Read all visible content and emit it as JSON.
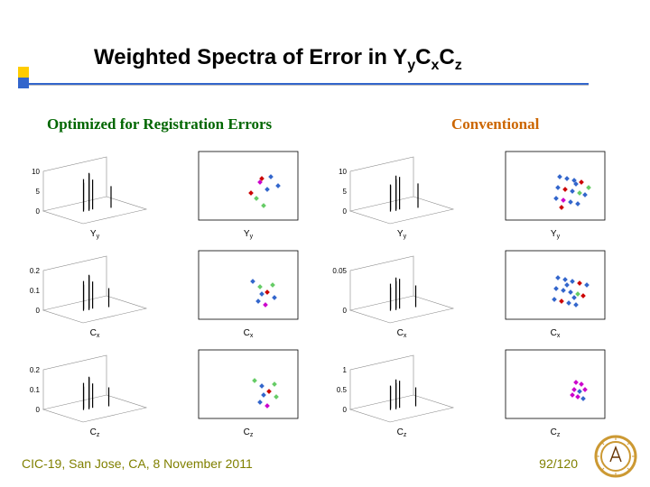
{
  "title_main": "Weighted Spectra of Error in Y",
  "title_sub_y": "y",
  "title_cx": "C",
  "title_sub_x": "x",
  "title_cz": "C",
  "title_sub_z": "z",
  "subhead_left": "Optimized for Registration Errors",
  "subhead_right": "Conventional",
  "footer_left": "CIC-19, San Jose, CA, 8 November 2011",
  "footer_page": "92/120",
  "accent_yellow": "#ffcc00",
  "accent_blue": "#3366cc",
  "channels": [
    "Y_y",
    "C_x",
    "C_z"
  ],
  "panels": {
    "rows": [
      {
        "channel_label": "Y",
        "channel_sub": "y",
        "left3d": {
          "yticks": [
            "0",
            "5",
            "10"
          ],
          "spikes": [
            [
              30,
              50,
              12
            ],
            [
              36,
              52,
              14
            ],
            [
              42,
              48,
              11
            ],
            [
              34,
              40,
              10
            ],
            [
              40,
              42,
              13
            ],
            [
              60,
              60,
              8
            ]
          ]
        },
        "left_scatter": {
          "points": [
            [
              70,
              30,
              "#cc0000"
            ],
            [
              76,
              42,
              "#3366cc"
            ],
            [
              64,
              52,
              "#66cc66"
            ],
            [
              88,
              38,
              "#3366cc"
            ],
            [
              58,
              46,
              "#cc0000"
            ],
            [
              72,
              60,
              "#66cc66"
            ],
            [
              80,
              28,
              "#3366cc"
            ],
            [
              68,
              34,
              "#cc00cc"
            ]
          ]
        },
        "right3d": {
          "yticks": [
            "0",
            "5",
            "10"
          ],
          "spikes": [
            [
              30,
              50,
              10
            ],
            [
              36,
              52,
              13
            ],
            [
              42,
              48,
              12
            ],
            [
              34,
              40,
              9
            ],
            [
              40,
              42,
              11
            ],
            [
              60,
              60,
              9
            ]
          ]
        },
        "right_scatter": {
          "points": [
            [
              60,
              28,
              "#3366cc"
            ],
            [
              68,
              30,
              "#3366cc"
            ],
            [
              76,
              32,
              "#3366cc"
            ],
            [
              84,
              34,
              "#cc0000"
            ],
            [
              58,
              40,
              "#3366cc"
            ],
            [
              66,
              42,
              "#cc0000"
            ],
            [
              74,
              44,
              "#3366cc"
            ],
            [
              82,
              46,
              "#66cc66"
            ],
            [
              56,
              52,
              "#3366cc"
            ],
            [
              64,
              54,
              "#cc00cc"
            ],
            [
              72,
              56,
              "#3366cc"
            ],
            [
              80,
              58,
              "#3366cc"
            ],
            [
              88,
              48,
              "#3366cc"
            ],
            [
              92,
              40,
              "#66cc66"
            ],
            [
              62,
              62,
              "#cc0000"
            ],
            [
              78,
              36,
              "#3366cc"
            ]
          ]
        }
      },
      {
        "channel_label": "C",
        "channel_sub": "x",
        "left3d": {
          "yticks": [
            "0",
            "0.1",
            "0.2"
          ],
          "spikes": [
            [
              30,
              50,
              11
            ],
            [
              36,
              52,
              13
            ],
            [
              42,
              48,
              10
            ],
            [
              34,
              40,
              9
            ],
            [
              40,
              42,
              12
            ],
            [
              58,
              58,
              7
            ]
          ]
        },
        "left_scatter": {
          "points": [
            [
              60,
              34,
              "#3366cc"
            ],
            [
              68,
              40,
              "#66cc66"
            ],
            [
              76,
              46,
              "#cc0000"
            ],
            [
              84,
              52,
              "#3366cc"
            ],
            [
              66,
              56,
              "#3366cc"
            ],
            [
              74,
              60,
              "#cc00cc"
            ],
            [
              82,
              38,
              "#66cc66"
            ],
            [
              70,
              48,
              "#3366cc"
            ]
          ]
        },
        "right3d": {
          "yticks": [
            "0",
            "0.05"
          ],
          "spikes": [
            [
              30,
              50,
              10
            ],
            [
              36,
              52,
              12
            ],
            [
              42,
              48,
              11
            ],
            [
              34,
              40,
              8
            ],
            [
              40,
              42,
              10
            ],
            [
              58,
              58,
              8
            ]
          ]
        },
        "right_scatter": {
          "points": [
            [
              58,
              30,
              "#3366cc"
            ],
            [
              66,
              32,
              "#3366cc"
            ],
            [
              74,
              34,
              "#3366cc"
            ],
            [
              82,
              36,
              "#cc0000"
            ],
            [
              56,
              42,
              "#3366cc"
            ],
            [
              64,
              44,
              "#3366cc"
            ],
            [
              72,
              46,
              "#3366cc"
            ],
            [
              80,
              48,
              "#66cc66"
            ],
            [
              54,
              54,
              "#3366cc"
            ],
            [
              62,
              56,
              "#cc0000"
            ],
            [
              70,
              58,
              "#3366cc"
            ],
            [
              78,
              60,
              "#3366cc"
            ],
            [
              86,
              50,
              "#cc0000"
            ],
            [
              90,
              38,
              "#3366cc"
            ],
            [
              68,
              38,
              "#3366cc"
            ],
            [
              76,
              52,
              "#3366cc"
            ]
          ]
        }
      },
      {
        "channel_label": "C",
        "channel_sub": "z",
        "left3d": {
          "yticks": [
            "0",
            "0.1",
            "0.2"
          ],
          "spikes": [
            [
              30,
              50,
              10
            ],
            [
              36,
              52,
              12
            ],
            [
              42,
              48,
              9
            ],
            [
              34,
              40,
              8
            ],
            [
              40,
              42,
              11
            ],
            [
              58,
              58,
              7
            ]
          ]
        },
        "left_scatter": {
          "points": [
            [
              62,
              34,
              "#66cc66"
            ],
            [
              70,
              40,
              "#3366cc"
            ],
            [
              78,
              46,
              "#cc0000"
            ],
            [
              86,
              52,
              "#66cc66"
            ],
            [
              68,
              58,
              "#3366cc"
            ],
            [
              76,
              62,
              "#cc00cc"
            ],
            [
              84,
              38,
              "#66cc66"
            ],
            [
              72,
              50,
              "#3366cc"
            ]
          ]
        },
        "right3d": {
          "yticks": [
            "0",
            "0.5",
            "1"
          ],
          "spikes": [
            [
              30,
              50,
              9
            ],
            [
              36,
              52,
              11
            ],
            [
              42,
              48,
              10
            ],
            [
              34,
              40,
              8
            ],
            [
              40,
              42,
              9
            ],
            [
              58,
              58,
              7
            ]
          ]
        },
        "right_scatter": {
          "points": [
            [
              78,
              36,
              "#cc00cc"
            ],
            [
              84,
              38,
              "#cc00cc"
            ],
            [
              76,
              44,
              "#cc00cc"
            ],
            [
              82,
              46,
              "#3366cc"
            ],
            [
              88,
              44,
              "#cc00cc"
            ],
            [
              80,
              52,
              "#cc00cc"
            ],
            [
              86,
              54,
              "#3366cc"
            ],
            [
              74,
              50,
              "#cc00cc"
            ]
          ]
        }
      }
    ]
  },
  "colors": {
    "axis": "#000000",
    "grid": "#d0d0d0",
    "marker_blue": "#3366cc",
    "marker_red": "#cc0000",
    "marker_green": "#66cc66",
    "marker_mag": "#cc00cc"
  },
  "logo": {
    "ring": "#cc9933",
    "inner": "#663300"
  }
}
